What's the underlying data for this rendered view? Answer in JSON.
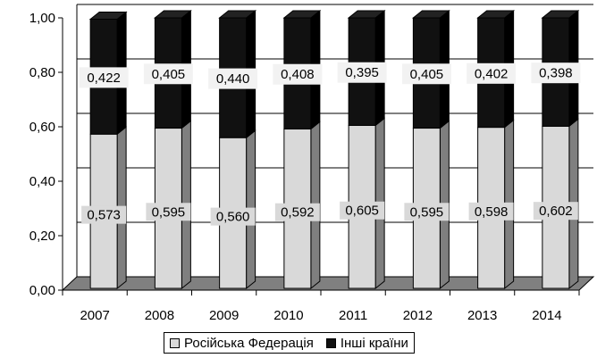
{
  "chart_data": {
    "type": "bar",
    "stacked": true,
    "three_d": true,
    "categories": [
      "2007",
      "2008",
      "2009",
      "2010",
      "2011",
      "2012",
      "2013",
      "2014"
    ],
    "series": [
      {
        "name": "Російська Федерація",
        "values": [
          0.573,
          0.595,
          0.56,
          0.592,
          0.605,
          0.595,
          0.598,
          0.602
        ],
        "labels": [
          "0,573",
          "0,595",
          "0,560",
          "0,592",
          "0,605",
          "0,595",
          "0,598",
          "0,602"
        ],
        "color": "#d9d9d9"
      },
      {
        "name": "Інші країни",
        "values": [
          0.422,
          0.405,
          0.44,
          0.408,
          0.395,
          0.405,
          0.402,
          0.398
        ],
        "labels": [
          "0,422",
          "0,405",
          "0,440",
          "0,408",
          "0,395",
          "0,405",
          "0,402",
          "0,398"
        ],
        "color": "#111111"
      }
    ],
    "ylim": [
      0,
      1
    ],
    "yticks": [
      0,
      0.2,
      0.4,
      0.6,
      0.8,
      1.0
    ],
    "ytick_labels": [
      "0,00",
      "0,20",
      "0,40",
      "0,60",
      "0,80",
      "1,00"
    ],
    "grid": true,
    "legend_position": "bottom",
    "floor_color": "#808080",
    "bar_side_color": "#7f7f7f",
    "title": "",
    "xlabel": "",
    "ylabel": ""
  }
}
